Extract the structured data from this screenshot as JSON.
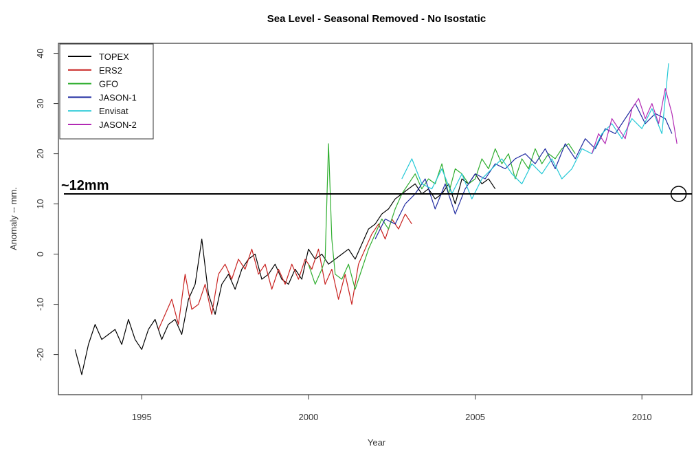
{
  "chart_data": {
    "type": "line",
    "title": "Sea Level - Seasonal Removed - No Isostatic",
    "xlabel": "Year",
    "ylabel": "Anomaly -- mm.",
    "xlim": [
      1992.5,
      2011.5
    ],
    "ylim": [
      -28,
      42
    ],
    "x_ticks": [
      1995,
      2000,
      2005,
      2010
    ],
    "y_ticks": [
      -20,
      -10,
      0,
      10,
      20,
      30,
      40
    ],
    "grid": false,
    "legend_position": "top-left",
    "series": [
      {
        "name": "TOPEX",
        "color": "#000000",
        "x": [
          1993.0,
          1993.2,
          1993.4,
          1993.6,
          1993.8,
          1994.0,
          1994.2,
          1994.4,
          1994.6,
          1994.8,
          1995.0,
          1995.2,
          1995.4,
          1995.6,
          1995.8,
          1996.0,
          1996.2,
          1996.4,
          1996.6,
          1996.8,
          1997.0,
          1997.2,
          1997.4,
          1997.6,
          1997.8,
          1998.0,
          1998.2,
          1998.4,
          1998.6,
          1998.8,
          1999.0,
          1999.2,
          1999.4,
          1999.6,
          1999.8,
          2000.0,
          2000.2,
          2000.4,
          2000.6,
          2000.8,
          2001.0,
          2001.2,
          2001.4,
          2001.6,
          2001.8,
          2002.0,
          2002.2,
          2002.4,
          2002.6,
          2002.8,
          2003.0,
          2003.2,
          2003.4,
          2003.6,
          2003.8,
          2004.0,
          2004.2,
          2004.4,
          2004.6,
          2004.8,
          2005.0,
          2005.2,
          2005.4,
          2005.6
        ],
        "y": [
          -19,
          -24,
          -18,
          -14,
          -17,
          -16,
          -15,
          -18,
          -13,
          -17,
          -19,
          -15,
          -13,
          -17,
          -14,
          -13,
          -16,
          -9,
          -6,
          3,
          -8,
          -12,
          -6,
          -4,
          -7,
          -3,
          -1,
          0,
          -5,
          -4,
          -2,
          -5,
          -6,
          -3,
          -5,
          1,
          -1,
          0,
          -2,
          -1,
          0,
          1,
          -1,
          2,
          5,
          6,
          8,
          9,
          11,
          12,
          13,
          14,
          12,
          13,
          11,
          12,
          14,
          10,
          15,
          14,
          16,
          14,
          15,
          13
        ]
      },
      {
        "name": "ERS2",
        "color": "#c8211f",
        "x": [
          1995.5,
          1995.7,
          1995.9,
          1996.1,
          1996.3,
          1996.5,
          1996.7,
          1996.9,
          1997.1,
          1997.3,
          1997.5,
          1997.7,
          1997.9,
          1998.1,
          1998.3,
          1998.5,
          1998.7,
          1998.9,
          1999.1,
          1999.3,
          1999.5,
          1999.7,
          1999.9,
          2000.1,
          2000.3,
          2000.5,
          2000.7,
          2000.9,
          2001.1,
          2001.3,
          2001.5,
          2001.7,
          2001.9,
          2002.1,
          2002.3,
          2002.5,
          2002.7,
          2002.9,
          2003.1
        ],
        "y": [
          -15,
          -12,
          -9,
          -14,
          -4,
          -11,
          -10,
          -6,
          -12,
          -4,
          -2,
          -5,
          -1,
          -3,
          1,
          -4,
          -2,
          -7,
          -3,
          -6,
          -2,
          -5,
          -1,
          -3,
          1,
          -6,
          -3,
          -9,
          -4,
          -10,
          -2,
          1,
          4,
          6,
          3,
          7,
          5,
          8,
          6
        ]
      },
      {
        "name": "GFO",
        "color": "#2fae2f",
        "x": [
          2000.0,
          2000.2,
          2000.4,
          2000.5,
          2000.6,
          2000.7,
          2000.8,
          2001.0,
          2001.2,
          2001.4,
          2001.6,
          2001.8,
          2002.0,
          2002.2,
          2002.4,
          2002.6,
          2002.8,
          2003.0,
          2003.2,
          2003.4,
          2003.6,
          2003.8,
          2004.0,
          2004.2,
          2004.4,
          2004.6,
          2004.8,
          2005.0,
          2005.2,
          2005.4,
          2005.6,
          2005.8,
          2006.0,
          2006.2,
          2006.4,
          2006.6,
          2006.8,
          2007.0,
          2007.2,
          2007.4,
          2007.6,
          2007.8,
          2008.0
        ],
        "y": [
          -2,
          -6,
          -3,
          -1,
          22,
          3,
          -4,
          -5,
          -2,
          -7,
          -3,
          1,
          4,
          7,
          5,
          9,
          12,
          14,
          16,
          13,
          15,
          14,
          18,
          12,
          17,
          16,
          14,
          15,
          19,
          17,
          21,
          18,
          20,
          15,
          19,
          17,
          21,
          18,
          20,
          19,
          21,
          22,
          20
        ]
      },
      {
        "name": "JASON-1",
        "color": "#1f2aa0",
        "x": [
          2002.0,
          2002.3,
          2002.6,
          2002.9,
          2003.2,
          2003.5,
          2003.8,
          2004.1,
          2004.4,
          2004.7,
          2005.0,
          2005.3,
          2005.6,
          2005.9,
          2006.2,
          2006.5,
          2006.8,
          2007.1,
          2007.4,
          2007.7,
          2008.0,
          2008.3,
          2008.6,
          2008.9,
          2009.2,
          2009.5,
          2009.8,
          2010.1,
          2010.4,
          2010.7,
          2010.9
        ],
        "y": [
          3,
          7,
          6,
          10,
          12,
          15,
          9,
          14,
          8,
          13,
          16,
          15,
          18,
          17,
          19,
          20,
          18,
          21,
          17,
          22,
          19,
          23,
          21,
          25,
          24,
          27,
          30,
          26,
          28,
          27,
          24
        ]
      },
      {
        "name": "Envisat",
        "color": "#22c8d6",
        "x": [
          2002.8,
          2003.1,
          2003.4,
          2003.7,
          2004.0,
          2004.3,
          2004.6,
          2004.9,
          2005.2,
          2005.5,
          2005.8,
          2006.1,
          2006.4,
          2006.7,
          2007.0,
          2007.3,
          2007.6,
          2007.9,
          2008.2,
          2008.5,
          2008.8,
          2009.1,
          2009.4,
          2009.7,
          2010.0,
          2010.3,
          2010.6,
          2010.8
        ],
        "y": [
          15,
          19,
          14,
          13,
          17,
          12,
          16,
          11,
          15,
          17,
          19,
          16,
          14,
          18,
          16,
          19,
          15,
          17,
          21,
          20,
          24,
          26,
          23,
          27,
          25,
          29,
          24,
          38
        ]
      },
      {
        "name": "JASON-2",
        "color": "#b22ab4",
        "x": [
          2008.5,
          2008.7,
          2008.9,
          2009.1,
          2009.3,
          2009.5,
          2009.7,
          2009.9,
          2010.1,
          2010.3,
          2010.5,
          2010.7,
          2010.9,
          2011.05
        ],
        "y": [
          20,
          24,
          22,
          27,
          25,
          23,
          29,
          31,
          27,
          30,
          26,
          33,
          28,
          22
        ]
      }
    ],
    "annotations": [
      {
        "text": "~12mm",
        "type": "hline",
        "y": 12
      },
      {
        "type": "circle",
        "x": 2011.1,
        "y": 12
      }
    ]
  }
}
